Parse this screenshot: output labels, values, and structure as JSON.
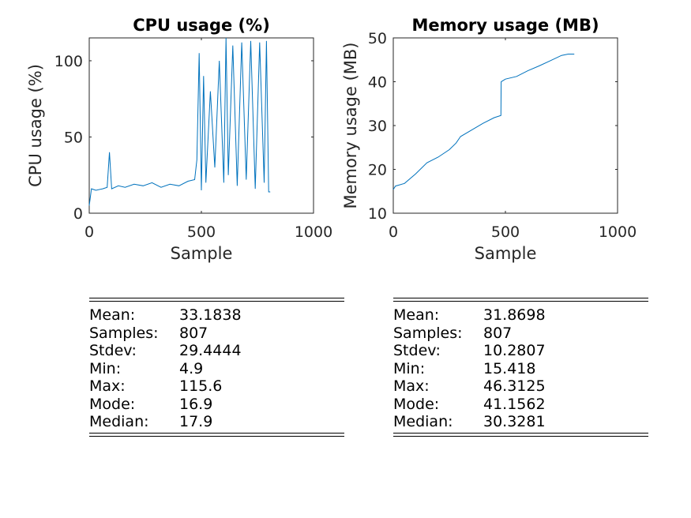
{
  "chart_data": [
    {
      "type": "line",
      "title": "CPU usage (%)",
      "xlabel": "Sample",
      "ylabel": "CPU usage (%)",
      "xlim": [
        0,
        1000
      ],
      "ylim": [
        0,
        115
      ],
      "xticks": [
        "0",
        "500",
        "1000"
      ],
      "yticks": [
        "0",
        "50",
        "100"
      ],
      "series": [
        {
          "color": "#0072BD",
          "x": [
            0,
            10,
            30,
            60,
            80,
            90,
            100,
            130,
            160,
            200,
            240,
            280,
            320,
            360,
            400,
            440,
            470,
            480,
            490,
            500,
            510,
            520,
            540,
            560,
            580,
            600,
            610,
            620,
            640,
            660,
            680,
            700,
            720,
            740,
            760,
            780,
            790,
            800,
            807
          ],
          "y": [
            5,
            16,
            15,
            16,
            17,
            40,
            16,
            18,
            17,
            19,
            18,
            20,
            17,
            19,
            18,
            21,
            22,
            35,
            105,
            15,
            90,
            20,
            80,
            30,
            100,
            20,
            115,
            25,
            110,
            18,
            112,
            22,
            113,
            16,
            112,
            20,
            113,
            14,
            14
          ]
        }
      ]
    },
    {
      "type": "line",
      "title": "Memory usage (MB)",
      "xlabel": "Sample",
      "ylabel": "Memory usage (MB)",
      "xlim": [
        0,
        1000
      ],
      "ylim": [
        10,
        50
      ],
      "xticks": [
        "0",
        "500",
        "1000"
      ],
      "yticks": [
        "10",
        "20",
        "30",
        "40",
        "50"
      ],
      "series": [
        {
          "color": "#0072BD",
          "x": [
            0,
            10,
            50,
            100,
            150,
            200,
            250,
            280,
            300,
            350,
            400,
            450,
            480,
            481,
            500,
            550,
            600,
            650,
            700,
            750,
            780,
            807
          ],
          "y": [
            15.4,
            16.2,
            16.8,
            19,
            21.5,
            22.8,
            24.5,
            26,
            27.5,
            29,
            30.5,
            31.8,
            32.3,
            40,
            40.6,
            41.2,
            42.5,
            43.6,
            44.8,
            46,
            46.3,
            46.3
          ]
        }
      ]
    }
  ],
  "stats": {
    "cpu": [
      {
        "k": "Mean:",
        "v": "33.1838"
      },
      {
        "k": "Samples:",
        "v": "807"
      },
      {
        "k": "Stdev:",
        "v": "29.4444"
      },
      {
        "k": "Min:",
        "v": "4.9"
      },
      {
        "k": "Max:",
        "v": "115.6"
      },
      {
        "k": "Mode:",
        "v": "16.9"
      },
      {
        "k": "Median:",
        "v": "17.9"
      }
    ],
    "mem": [
      {
        "k": "Mean:",
        "v": "31.8698"
      },
      {
        "k": "Samples:",
        "v": "807"
      },
      {
        "k": "Stdev:",
        "v": "10.2807"
      },
      {
        "k": "Min:",
        "v": "15.418"
      },
      {
        "k": "Max:",
        "v": "46.3125"
      },
      {
        "k": "Mode:",
        "v": "41.1562"
      },
      {
        "k": "Median:",
        "v": "30.3281"
      }
    ]
  }
}
